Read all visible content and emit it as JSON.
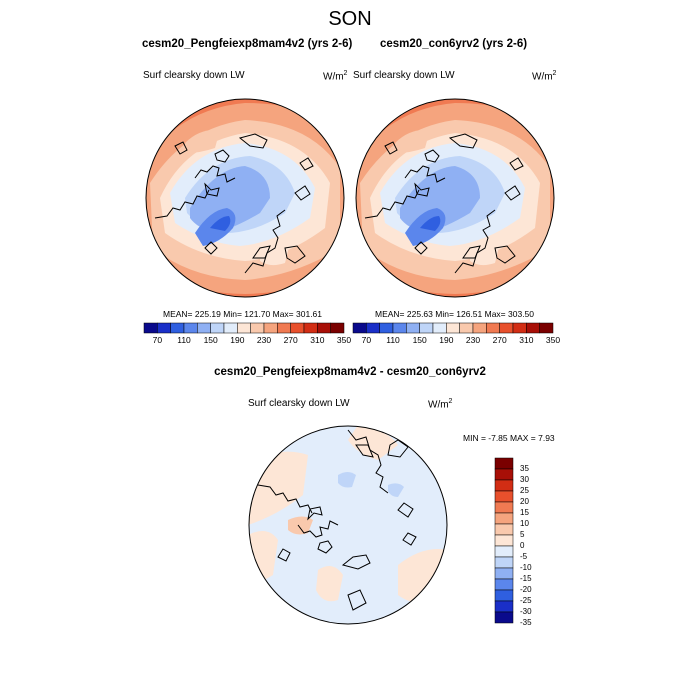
{
  "page_title": "SON",
  "panels": [
    {
      "title": "cesm20_Pengfeiexp8mam4v2 (yrs 2-6)",
      "variable": "Surf clearsky down LW",
      "unit": "W/m",
      "unit_sup": "2",
      "stats": "MEAN= 225.19  Min= 121.70  Max= 301.61"
    },
    {
      "title": "cesm20_con6yrv2 (yrs 2-6)",
      "variable": "Surf clearsky down LW",
      "unit": "W/m",
      "unit_sup": "2",
      "stats": "MEAN= 225.63  Min= 126.51  Max= 303.50"
    }
  ],
  "diff_panel": {
    "title": "cesm20_Pengfeiexp8mam4v2 - cesm20_con6yrv2",
    "variable": "Surf clearsky down LW",
    "unit": "W/m",
    "unit_sup": "2",
    "minmax": "MIN = -7.85 MAX =   7.93"
  },
  "colorbar_abs": {
    "colors": [
      "#0a0a8c",
      "#1a2fc8",
      "#2f5fe0",
      "#5b86ec",
      "#8fb0f3",
      "#bfd5f8",
      "#e2edfb",
      "#fde6d6",
      "#f9c9ad",
      "#f5a47e",
      "#f07a52",
      "#e8502c",
      "#d22d14",
      "#a80f07",
      "#7a0000"
    ],
    "labels": [
      "70",
      "110",
      "150",
      "190",
      "230",
      "270",
      "310",
      "350"
    ]
  },
  "colorbar_diff": {
    "colors": [
      "#7a0000",
      "#a80f07",
      "#d22d14",
      "#e8502c",
      "#f07a52",
      "#f5a47e",
      "#f9c9ad",
      "#fde6d6",
      "#e2edfb",
      "#bfd5f8",
      "#8fb0f3",
      "#5b86ec",
      "#2f5fe0",
      "#1a2fc8",
      "#0a0a8c"
    ],
    "labels": [
      "35",
      "30",
      "25",
      "20",
      "15",
      "10",
      "5",
      "0",
      "-5",
      "-10",
      "-15",
      "-20",
      "-25",
      "-30",
      "-35"
    ]
  }
}
